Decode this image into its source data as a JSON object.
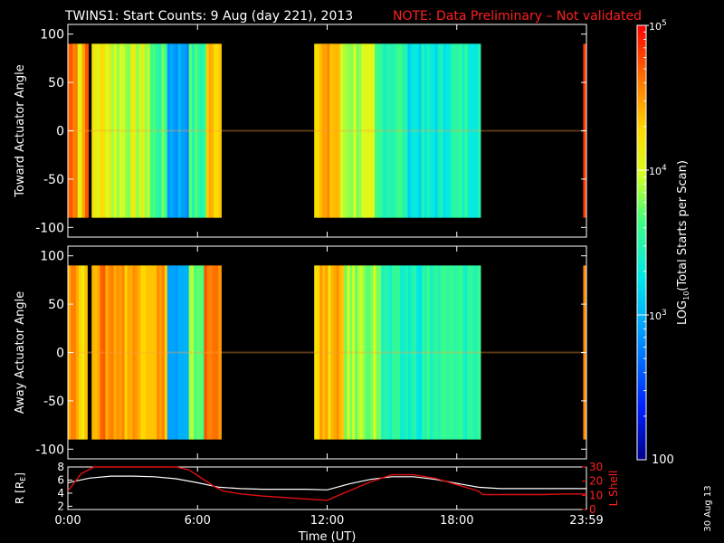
{
  "header": {
    "title": "TWINS1: Start Counts:  9 Aug (day 221), 2013",
    "note": "NOTE: Data Preliminary – Not validated"
  },
  "colors": {
    "background": "#000000",
    "axis": "#ffffff",
    "note": "#ff2020",
    "lshell_line": "#e01010",
    "r_line": "#ffffff"
  },
  "footer": {
    "stamp": "30 Aug 13"
  },
  "chart_data": [
    {
      "type": "heatmap",
      "title": "",
      "ylabel": "Toward Actuator Angle",
      "ylim": [
        -110,
        110
      ],
      "yticks": [
        "100",
        "50",
        "0",
        "-50",
        "-100"
      ],
      "xlim_hours": [
        0,
        24
      ],
      "data_y_range": [
        -90,
        90
      ],
      "colorscale": "rainbow",
      "blocks": [
        {
          "t0": 0.0,
          "t1": 0.45,
          "log": 4.7
        },
        {
          "t0": 0.45,
          "t1": 0.65,
          "log": 4.1
        },
        {
          "t0": 0.65,
          "t1": 0.95,
          "log": 4.6
        },
        {
          "t0": 1.1,
          "t1": 2.0,
          "log": 4.15
        },
        {
          "t0": 2.0,
          "t1": 3.8,
          "log": 3.95
        },
        {
          "t0": 3.8,
          "t1": 4.6,
          "log": 3.6
        },
        {
          "t0": 4.6,
          "t1": 5.6,
          "log": 2.95
        },
        {
          "t0": 5.6,
          "t1": 6.4,
          "log": 3.55
        },
        {
          "t0": 6.4,
          "t1": 7.1,
          "log": 4.35
        },
        {
          "t0": 11.4,
          "t1": 12.6,
          "log": 4.4
        },
        {
          "t0": 12.6,
          "t1": 14.2,
          "log": 3.9
        },
        {
          "t0": 14.2,
          "t1": 15.6,
          "log": 3.55
        },
        {
          "t0": 15.6,
          "t1": 17.5,
          "log": 3.3
        },
        {
          "t0": 17.5,
          "t1": 19.1,
          "log": 3.45
        },
        {
          "t0": 23.85,
          "t1": 24.0,
          "log": 4.7
        }
      ]
    },
    {
      "type": "heatmap",
      "title": "",
      "ylabel": "Away Actuator Angle",
      "ylim": [
        -110,
        110
      ],
      "yticks": [
        "100",
        "50",
        "0",
        "-50",
        "-100"
      ],
      "xlim_hours": [
        0,
        24
      ],
      "data_y_range": [
        -90,
        90
      ],
      "colorscale": "rainbow",
      "blocks": [
        {
          "t0": 0.0,
          "t1": 0.5,
          "log": 4.6
        },
        {
          "t0": 0.5,
          "t1": 0.9,
          "log": 4.2
        },
        {
          "t0": 1.1,
          "t1": 2.5,
          "log": 4.55
        },
        {
          "t0": 2.5,
          "t1": 4.6,
          "log": 4.45
        },
        {
          "t0": 4.6,
          "t1": 5.6,
          "log": 2.9
        },
        {
          "t0": 5.6,
          "t1": 6.3,
          "log": 3.75
        },
        {
          "t0": 6.3,
          "t1": 7.1,
          "log": 4.6
        },
        {
          "t0": 11.4,
          "t1": 12.8,
          "log": 4.35
        },
        {
          "t0": 12.8,
          "t1": 14.5,
          "log": 3.85
        },
        {
          "t0": 14.5,
          "t1": 16.5,
          "log": 3.4
        },
        {
          "t0": 16.5,
          "t1": 19.1,
          "log": 3.5
        },
        {
          "t0": 23.85,
          "t1": 24.0,
          "log": 4.7
        }
      ]
    },
    {
      "type": "line",
      "title": "",
      "xlabel": "Time (UT)",
      "ylabel_left": "R [R",
      "ylabel_left_sub": "E",
      "ylabel_left_end": "]",
      "ylabel_right": "L Shell",
      "ylim_left": [
        1.5,
        8
      ],
      "ylim_right": [
        0,
        30
      ],
      "yticks_left": [
        "8",
        "6",
        "4",
        "2"
      ],
      "yticks_right": [
        "30",
        "20",
        "10",
        "0"
      ],
      "xtick_labels": [
        "0:00",
        "6:00",
        "12:00",
        "18:00",
        "23:59"
      ],
      "xtick_hours": [
        0,
        6,
        12,
        18,
        24
      ],
      "series": [
        {
          "axis": "left",
          "x": [
            0,
            1,
            2,
            3,
            4,
            5,
            6,
            7,
            8,
            9,
            10,
            11,
            12,
            13,
            14,
            15,
            16,
            17,
            18,
            19,
            20,
            21,
            22,
            23,
            24
          ],
          "y": [
            5.6,
            6.3,
            6.6,
            6.6,
            6.5,
            6.2,
            5.6,
            4.9,
            4.7,
            4.6,
            4.6,
            4.6,
            4.5,
            5.4,
            6.1,
            6.5,
            6.5,
            6.1,
            5.5,
            4.9,
            4.7,
            4.7,
            4.7,
            4.7,
            4.7
          ]
        },
        {
          "axis": "right",
          "x": [
            0,
            0.6,
            1.2,
            5.0,
            5.6,
            6.2,
            6.8,
            7.2,
            8,
            9,
            10,
            11,
            12,
            13,
            14,
            15,
            16,
            17,
            18,
            19,
            19.2,
            20,
            21,
            22,
            23,
            24
          ],
          "y": [
            13,
            25,
            31,
            31,
            28,
            22,
            16,
            13,
            11,
            9.5,
            8.5,
            7.5,
            6.5,
            13,
            19.5,
            24.5,
            24.5,
            22,
            17.5,
            13,
            10.5,
            10.5,
            10.5,
            10.5,
            11,
            11
          ]
        }
      ]
    }
  ],
  "colorbar": {
    "label_prefix": "LOG",
    "label_sub": "10",
    "label_suffix": "(Total Starts per Scan)",
    "tick_base": "10",
    "tick_exps": [
      "5",
      "4",
      "3"
    ],
    "bottom_label": "100",
    "range_log": [
      2,
      5
    ]
  }
}
